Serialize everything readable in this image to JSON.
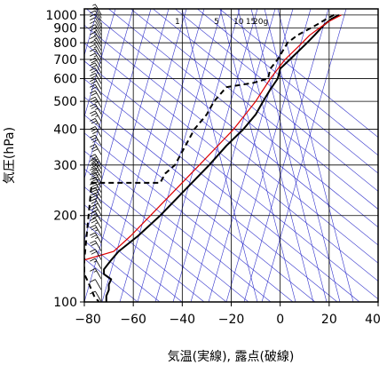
{
  "chart_data": {
    "type": "line",
    "title": "",
    "xlabel": "気温(実線), 露点(破線)",
    "ylabel": "気圧(hPa)",
    "xlim": [
      -80,
      40
    ],
    "ylim": [
      1050,
      100
    ],
    "y_scale": "log",
    "x_ticks": [
      -80,
      -60,
      -40,
      -20,
      0,
      20,
      40
    ],
    "x_tick_labels": [
      "−80",
      "−60",
      "−40",
      "−20",
      "0",
      "20",
      "40"
    ],
    "y_ticks": [
      100,
      200,
      300,
      400,
      500,
      600,
      700,
      800,
      900,
      1000
    ],
    "y_tick_labels": [
      "100",
      "200",
      "300",
      "400",
      "500",
      "600",
      "700",
      "800",
      "900",
      "1000"
    ],
    "mixing_ratio_labels": [
      {
        "text": "1",
        "t": -42
      },
      {
        "text": "5",
        "t": -26
      },
      {
        "text": "10",
        "t": -17
      },
      {
        "text": "15",
        "t": -12
      },
      {
        "text": "20g",
        "t": -8
      }
    ],
    "colors": {
      "temperature": "#000000",
      "dewpoint": "#000000",
      "reference": "#dd0000",
      "background_lines": "#3333cc",
      "grid": "#000000"
    },
    "series": [
      {
        "style": "solid",
        "p": [
          1000,
          970,
          925,
          850,
          800,
          700,
          650,
          600,
          550,
          500,
          450,
          400,
          350,
          300,
          250,
          200,
          170,
          150,
          140,
          130,
          125,
          120,
          115,
          110,
          105,
          100
        ],
        "t": [
          24,
          21,
          18,
          14,
          11,
          4,
          0,
          -1,
          -4,
          -7,
          -10,
          -15,
          -22,
          -29,
          -38,
          -49,
          -58,
          -66,
          -69,
          -72,
          -72,
          -69,
          -70,
          -70,
          -71,
          -71
        ]
      },
      {
        "style": "dashed",
        "p": [
          1000,
          970,
          925,
          850,
          800,
          700,
          650,
          600,
          580,
          560,
          500,
          450,
          400,
          300,
          280,
          260,
          260,
          140,
          125,
          120,
          115,
          105,
          100
        ],
        "t": [
          22,
          19,
          15,
          7,
          3,
          -1,
          -4,
          -5,
          -11,
          -22,
          -27,
          -30,
          -35,
          -43,
          -47,
          -49,
          -77,
          -80,
          -80,
          -79,
          -78,
          -76,
          -74
        ]
      },
      {
        "style": "solid",
        "p": [
          1000,
          950,
          900,
          850,
          800,
          700,
          600,
          500,
          400,
          300,
          250,
          200,
          170,
          150,
          140
        ],
        "t": [
          25,
          20,
          16,
          12,
          9,
          2,
          -4,
          -10,
          -19,
          -33,
          -42,
          -53,
          -61,
          -68,
          -80
        ]
      }
    ],
    "wind_barbs": {
      "pressures": [
        1000,
        975,
        950,
        925,
        900,
        875,
        850,
        825,
        800,
        775,
        750,
        725,
        700,
        675,
        650,
        625,
        600,
        575,
        550,
        525,
        500,
        475,
        450,
        425,
        400,
        375,
        350,
        325,
        300,
        290,
        280,
        270,
        260,
        250,
        240,
        230,
        220,
        210,
        200,
        190,
        180,
        170,
        160,
        150,
        140,
        130,
        120,
        110,
        100
      ],
      "speeds_kt": [
        5,
        5,
        10,
        10,
        10,
        10,
        15,
        15,
        15,
        15,
        15,
        15,
        15,
        15,
        20,
        20,
        20,
        20,
        20,
        20,
        20,
        25,
        25,
        25,
        25,
        30,
        30,
        30,
        35,
        35,
        35,
        35,
        35,
        35,
        35,
        35,
        30,
        30,
        30,
        30,
        25,
        25,
        25,
        20,
        20,
        15,
        15,
        10,
        10
      ]
    }
  }
}
